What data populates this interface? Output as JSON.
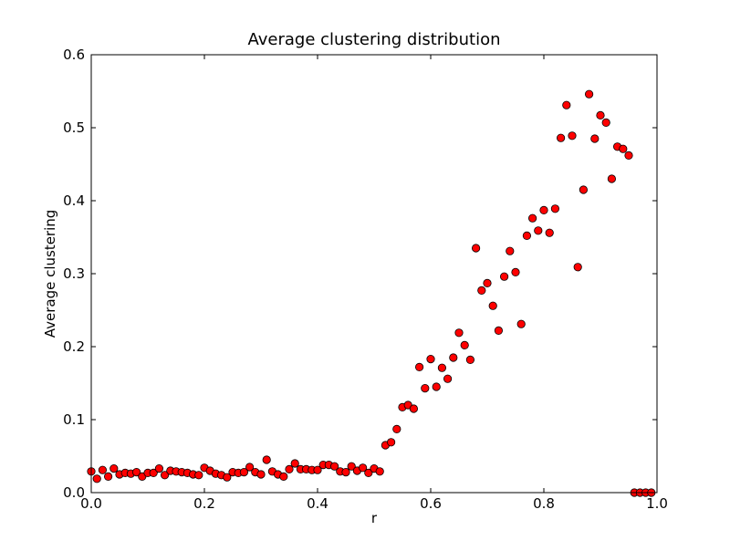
{
  "chart_data": {
    "type": "scatter",
    "title": "Average clustering distribution",
    "xlabel": "r",
    "ylabel": "Average clustering",
    "xlim": [
      0.0,
      1.0
    ],
    "ylim": [
      0.0,
      0.6
    ],
    "x_ticks": [
      "0.0",
      "0.2",
      "0.4",
      "0.6",
      "0.8",
      "1.0"
    ],
    "y_ticks": [
      "0.0",
      "0.1",
      "0.2",
      "0.3",
      "0.4",
      "0.5",
      "0.6"
    ],
    "grid": false,
    "legend": "none",
    "marker_color": "#ff0000",
    "marker_edge_color": "#000000",
    "series": [
      {
        "x": [
          0.0,
          0.01,
          0.02,
          0.03,
          0.04,
          0.05,
          0.06,
          0.07,
          0.08,
          0.09,
          0.1,
          0.11,
          0.12,
          0.13,
          0.14,
          0.15,
          0.16,
          0.17,
          0.18,
          0.19,
          0.2,
          0.21,
          0.22,
          0.23,
          0.24,
          0.25,
          0.26,
          0.27,
          0.28,
          0.29,
          0.3,
          0.31,
          0.32,
          0.33,
          0.34,
          0.35,
          0.36,
          0.37,
          0.38,
          0.39,
          0.4,
          0.41,
          0.42,
          0.43,
          0.44,
          0.45,
          0.46,
          0.47,
          0.48,
          0.49,
          0.5,
          0.51,
          0.52,
          0.53,
          0.54,
          0.55,
          0.56,
          0.57,
          0.58,
          0.59,
          0.6,
          0.61,
          0.62,
          0.63,
          0.64,
          0.65,
          0.66,
          0.67,
          0.68,
          0.69,
          0.7,
          0.71,
          0.72,
          0.73,
          0.74,
          0.75,
          0.76,
          0.77,
          0.78,
          0.79,
          0.8,
          0.81,
          0.82,
          0.83,
          0.84,
          0.85,
          0.86,
          0.87,
          0.88,
          0.89,
          0.9,
          0.91,
          0.92,
          0.93,
          0.94,
          0.95,
          0.96,
          0.97,
          0.98,
          0.99
        ],
        "y": [
          0.029,
          0.019,
          0.031,
          0.022,
          0.033,
          0.025,
          0.027,
          0.026,
          0.028,
          0.022,
          0.027,
          0.027,
          0.033,
          0.024,
          0.03,
          0.029,
          0.028,
          0.027,
          0.025,
          0.024,
          0.034,
          0.03,
          0.026,
          0.024,
          0.021,
          0.028,
          0.027,
          0.028,
          0.035,
          0.028,
          0.025,
          0.045,
          0.029,
          0.025,
          0.022,
          0.032,
          0.04,
          0.032,
          0.032,
          0.031,
          0.031,
          0.038,
          0.038,
          0.036,
          0.029,
          0.028,
          0.036,
          0.03,
          0.034,
          0.027,
          0.033,
          0.029,
          0.065,
          0.069,
          0.087,
          0.117,
          0.12,
          0.115,
          0.172,
          0.143,
          0.183,
          0.145,
          0.171,
          0.156,
          0.185,
          0.219,
          0.202,
          0.182,
          0.335,
          0.277,
          0.287,
          0.256,
          0.222,
          0.296,
          0.331,
          0.302,
          0.231,
          0.352,
          0.376,
          0.359,
          0.387,
          0.356,
          0.389,
          0.486,
          0.531,
          0.489,
          0.309,
          0.415,
          0.546,
          0.485,
          0.517,
          0.507,
          0.43,
          0.474,
          0.471,
          0.462,
          0.0,
          0.0,
          0.0,
          0.0
        ]
      }
    ]
  }
}
